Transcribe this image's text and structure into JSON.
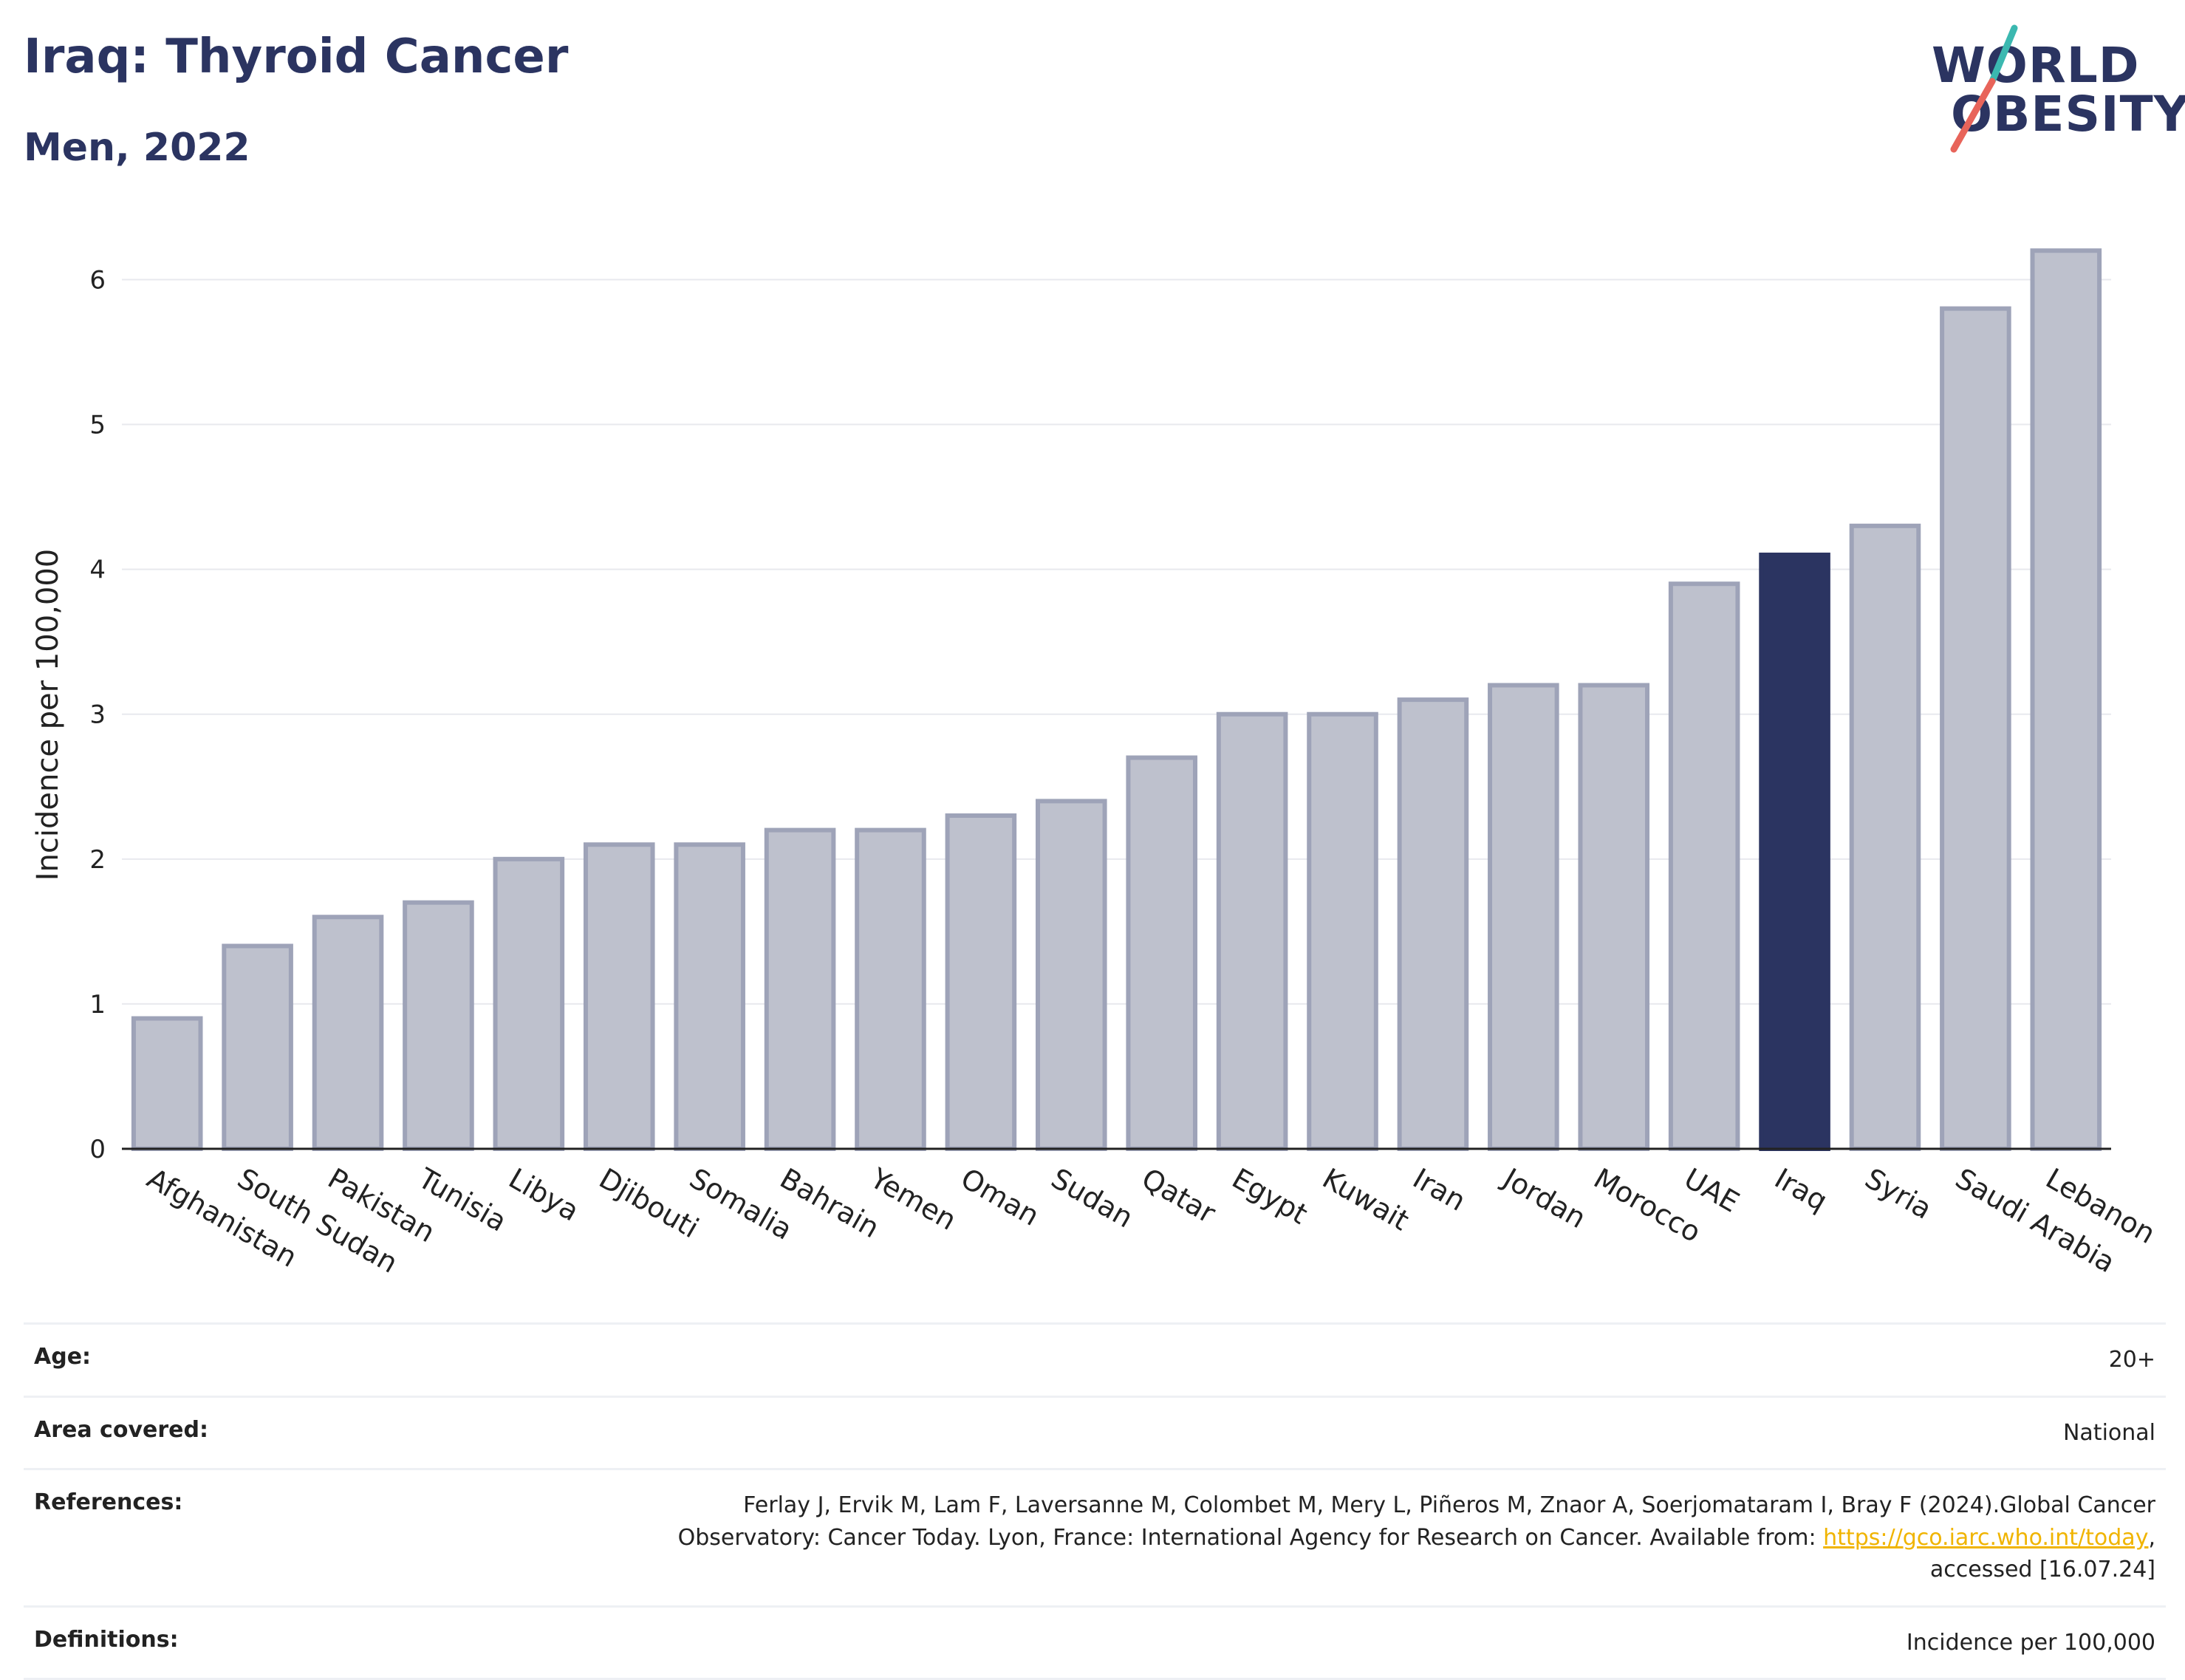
{
  "header": {
    "title": "Iraq: Thyroid Cancer",
    "subtitle": "Men, 2022"
  },
  "logo": {
    "line1": "WORLD",
    "line2": "OBESITY",
    "colors": {
      "text": "#2b3461",
      "slash_top": "#3bb8b0",
      "slash_bottom": "#e8645a"
    }
  },
  "chart_data": {
    "type": "bar",
    "ylabel": "Incidence per 100,000",
    "ylim": [
      0,
      6.4
    ],
    "yticks": [
      0,
      1,
      2,
      3,
      4,
      5,
      6
    ],
    "grid": true,
    "highlight": "Iraq",
    "colors": {
      "bar": "#bec1cd",
      "bar_edge": "#9ea3b8",
      "highlight": "#2b3461"
    },
    "categories": [
      "Afghanistan",
      "South Sudan",
      "Pakistan",
      "Tunisia",
      "Libya",
      "Djibouti",
      "Somalia",
      "Bahrain",
      "Yemen",
      "Oman",
      "Sudan",
      "Qatar",
      "Egypt",
      "Kuwait",
      "Iran",
      "Jordan",
      "Morocco",
      "UAE",
      "Iraq",
      "Syria",
      "Saudi Arabia",
      "Lebanon"
    ],
    "values": [
      0.9,
      1.4,
      1.6,
      1.7,
      2.0,
      2.1,
      2.1,
      2.2,
      2.2,
      2.3,
      2.4,
      2.7,
      3.0,
      3.0,
      3.1,
      3.2,
      3.2,
      3.9,
      4.1,
      4.3,
      5.8,
      6.2
    ]
  },
  "meta": {
    "age_label": "Age:",
    "age_value": "20+",
    "area_label": "Area covered:",
    "area_value": "National",
    "references_label": "References:",
    "references_line1": "Ferlay J, Ervik M, Lam F, Laversanne M, Colombet M, Mery L, Piñeros M, Znaor A, Soerjomataram I, Bray F (2024).Global Cancer",
    "references_line2_pre": "Observatory: Cancer Today. Lyon, France: International Agency for Research on Cancer. Available from: ",
    "references_link": "https://gco.iarc.who.int/today",
    "references_line2_post": ",",
    "references_line3": "accessed [16.07.24]",
    "definitions_label": "Definitions:",
    "definitions_value": "Incidence per 100,000"
  }
}
